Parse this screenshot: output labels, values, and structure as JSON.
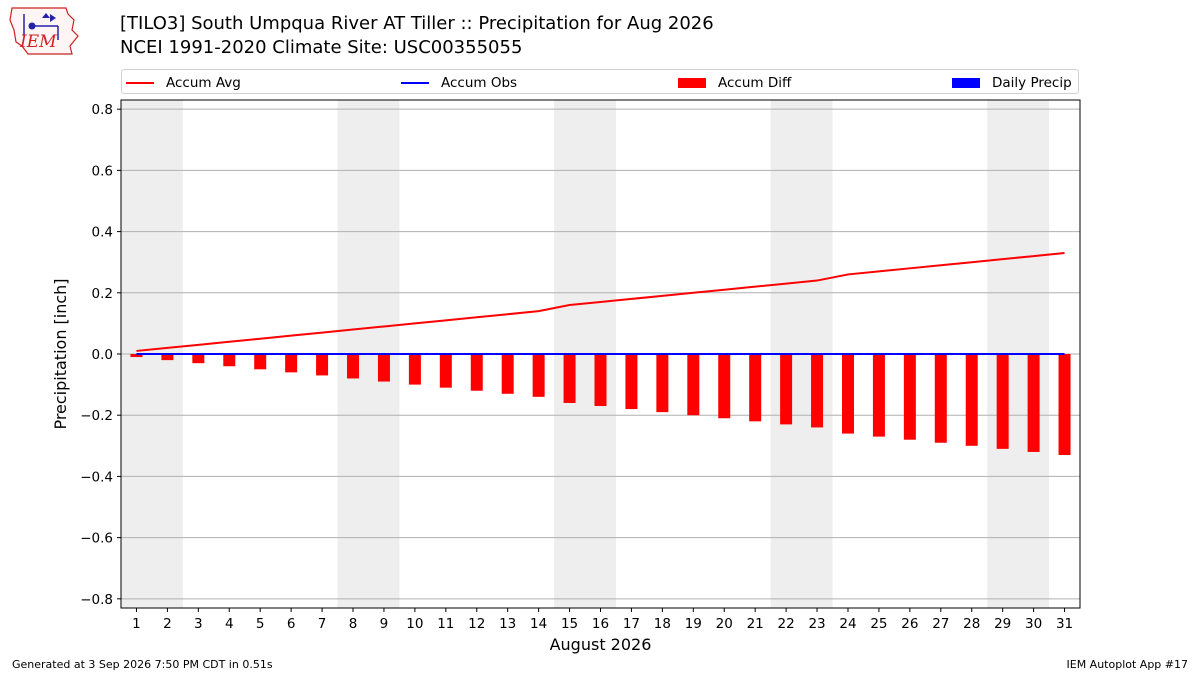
{
  "header": {
    "title_line1": "[TILO3] South Umpqua River  AT Tiller :: Precipitation for Aug 2026",
    "title_line2": "NCEI 1991-2020 Climate Site: USC00355055",
    "logo_text": "IEM"
  },
  "footer": {
    "left": "Generated at 3 Sep 2026 7:50 PM CDT in 0.51s",
    "right": "IEM Autoplot App #17"
  },
  "legend": {
    "items": [
      {
        "label": "Accum Avg",
        "kind": "line",
        "color": "#ff0000"
      },
      {
        "label": "Accum Obs",
        "kind": "line",
        "color": "#0000ff"
      },
      {
        "label": "Accum Diff",
        "kind": "patch",
        "color": "#ff0000"
      },
      {
        "label": "Daily Precip",
        "kind": "patch",
        "color": "#0000ff"
      }
    ]
  },
  "chart_data": {
    "type": "bar",
    "xlabel": "August 2026",
    "ylabel": "Precipitation [inch]",
    "xlim": [
      0.5,
      31.5
    ],
    "ylim": [
      -0.83,
      0.83
    ],
    "yticks": [
      -0.8,
      -0.6,
      -0.4,
      -0.2,
      0.0,
      0.2,
      0.4,
      0.6,
      0.8
    ],
    "ytick_labels": [
      "−0.8",
      "−0.6",
      "−0.4",
      "−0.2",
      "0.0",
      "0.2",
      "0.4",
      "0.6",
      "0.8"
    ],
    "grid": true,
    "x": [
      1,
      2,
      3,
      4,
      5,
      6,
      7,
      8,
      9,
      10,
      11,
      12,
      13,
      14,
      15,
      16,
      17,
      18,
      19,
      20,
      21,
      22,
      23,
      24,
      25,
      26,
      27,
      28,
      29,
      30,
      31
    ],
    "weekend_shading": [
      [
        0.5,
        2.5
      ],
      [
        7.5,
        9.5
      ],
      [
        14.5,
        16.5
      ],
      [
        21.5,
        23.5
      ],
      [
        28.5,
        30.5
      ]
    ],
    "series": [
      {
        "name": "Accum Avg",
        "type": "line",
        "color": "#ff0000",
        "values": [
          0.01,
          0.02,
          0.03,
          0.04,
          0.05,
          0.06,
          0.07,
          0.08,
          0.09,
          0.1,
          0.11,
          0.12,
          0.13,
          0.14,
          0.16,
          0.17,
          0.18,
          0.19,
          0.2,
          0.21,
          0.22,
          0.23,
          0.24,
          0.26,
          0.27,
          0.28,
          0.29,
          0.3,
          0.31,
          0.32,
          0.33
        ]
      },
      {
        "name": "Accum Obs",
        "type": "line",
        "color": "#0000ff",
        "values": [
          0,
          0,
          0,
          0,
          0,
          0,
          0,
          0,
          0,
          0,
          0,
          0,
          0,
          0,
          0,
          0,
          0,
          0,
          0,
          0,
          0,
          0,
          0,
          0,
          0,
          0,
          0,
          0,
          0,
          0,
          0
        ]
      },
      {
        "name": "Accum Diff",
        "type": "bar",
        "color": "#ff0000",
        "values": [
          -0.01,
          -0.02,
          -0.03,
          -0.04,
          -0.05,
          -0.06,
          -0.07,
          -0.08,
          -0.09,
          -0.1,
          -0.11,
          -0.12,
          -0.13,
          -0.14,
          -0.16,
          -0.17,
          -0.18,
          -0.19,
          -0.2,
          -0.21,
          -0.22,
          -0.23,
          -0.24,
          -0.26,
          -0.27,
          -0.28,
          -0.29,
          -0.3,
          -0.31,
          -0.32,
          -0.33
        ]
      },
      {
        "name": "Daily Precip",
        "type": "bar",
        "color": "#0000ff",
        "values": [
          0,
          0,
          0,
          0,
          0,
          0,
          0,
          0,
          0,
          0,
          0,
          0,
          0,
          0,
          0,
          0,
          0,
          0,
          0,
          0,
          0,
          0,
          0,
          0,
          0,
          0,
          0,
          0,
          0,
          0,
          0
        ]
      }
    ]
  }
}
